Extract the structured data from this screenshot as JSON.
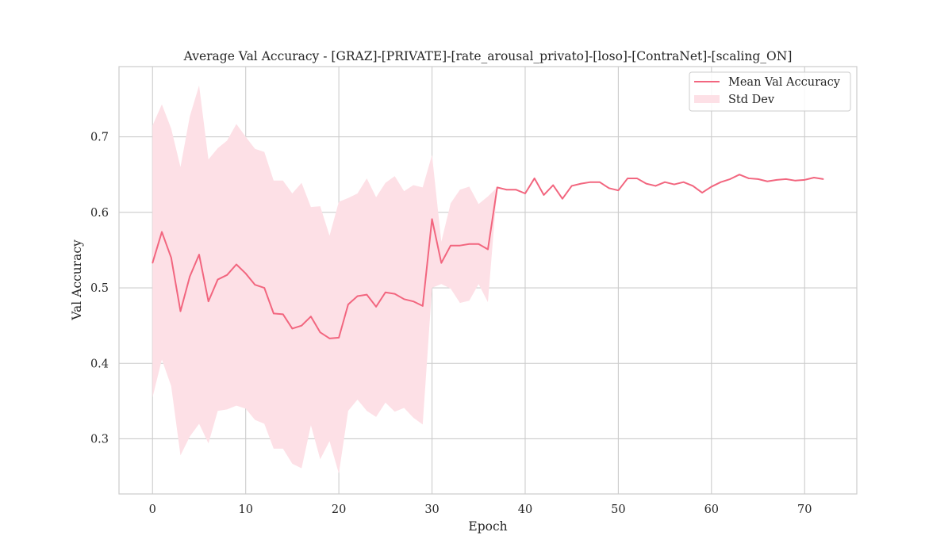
{
  "chart_data": {
    "type": "line",
    "title": "Average Val Accuracy - [GRAZ]-[PRIVATE]-[rate_arousal_privato]-[loso]-[ContraNet]-[scaling_ON]",
    "xlabel": "Epoch",
    "ylabel": "Val Accuracy",
    "xlim": [
      -3.6,
      75.6
    ],
    "ylim": [
      0.227,
      0.793
    ],
    "xticks": [
      0,
      10,
      20,
      30,
      40,
      50,
      60,
      70
    ],
    "yticks": [
      0.3,
      0.4,
      0.5,
      0.6,
      0.7
    ],
    "ytick_labels": [
      "0.3",
      "0.4",
      "0.5",
      "0.6",
      "0.7"
    ],
    "grid": true,
    "legend_position": "top-right",
    "colors": {
      "line": "#f2667f",
      "band": "#fde0e6",
      "grid": "#cccccc",
      "frame": "#cccccc"
    },
    "series": [
      {
        "name": "Mean Val Accuracy",
        "x": [
          0,
          1,
          2,
          3,
          4,
          5,
          6,
          7,
          8,
          9,
          10,
          11,
          12,
          13,
          14,
          15,
          16,
          17,
          18,
          19,
          20,
          21,
          22,
          23,
          24,
          25,
          26,
          27,
          28,
          29,
          30,
          31,
          32,
          33,
          34,
          35,
          36,
          37,
          38,
          39,
          40,
          41,
          42,
          43,
          44,
          45,
          46,
          47,
          48,
          49,
          50,
          51,
          52,
          53,
          54,
          55,
          56,
          57,
          58,
          59,
          60,
          61,
          62,
          63,
          64,
          65,
          66,
          67,
          68,
          69,
          70,
          71,
          72
        ],
        "y": [
          0.533,
          0.574,
          0.54,
          0.469,
          0.515,
          0.544,
          0.482,
          0.511,
          0.517,
          0.531,
          0.519,
          0.504,
          0.5,
          0.466,
          0.465,
          0.446,
          0.45,
          0.462,
          0.441,
          0.433,
          0.434,
          0.478,
          0.489,
          0.491,
          0.475,
          0.494,
          0.492,
          0.485,
          0.482,
          0.476,
          0.591,
          0.533,
          0.556,
          0.556,
          0.558,
          0.558,
          0.551,
          0.633,
          0.63,
          0.63,
          0.625,
          0.645,
          0.623,
          0.636,
          0.618,
          0.635,
          0.638,
          0.64,
          0.64,
          0.632,
          0.629,
          0.645,
          0.645,
          0.638,
          0.635,
          0.64,
          0.637,
          0.64,
          0.635,
          0.626,
          0.634,
          0.64,
          0.644,
          0.65,
          0.645,
          0.644,
          0.641,
          0.643,
          0.644,
          0.642,
          0.643,
          0.646,
          0.644
        ]
      },
      {
        "name": "Std Dev",
        "x": [
          0,
          1,
          2,
          3,
          4,
          5,
          6,
          7,
          8,
          9,
          10,
          11,
          12,
          13,
          14,
          15,
          16,
          17,
          18,
          19,
          20,
          21,
          22,
          23,
          24,
          25,
          26,
          27,
          28,
          29,
          30,
          31,
          32,
          33,
          34,
          35,
          36,
          37
        ],
        "upper": [
          0.715,
          0.743,
          0.711,
          0.66,
          0.727,
          0.768,
          0.67,
          0.685,
          0.695,
          0.717,
          0.7,
          0.684,
          0.68,
          0.642,
          0.642,
          0.625,
          0.639,
          0.607,
          0.608,
          0.569,
          0.614,
          0.619,
          0.625,
          0.645,
          0.62,
          0.639,
          0.648,
          0.628,
          0.636,
          0.633,
          0.676,
          0.561,
          0.612,
          0.63,
          0.634,
          0.611,
          0.621,
          0.633
        ],
        "lower": [
          0.355,
          0.405,
          0.37,
          0.278,
          0.303,
          0.32,
          0.294,
          0.337,
          0.339,
          0.344,
          0.34,
          0.325,
          0.32,
          0.287,
          0.287,
          0.267,
          0.261,
          0.318,
          0.273,
          0.297,
          0.254,
          0.337,
          0.352,
          0.337,
          0.329,
          0.348,
          0.336,
          0.341,
          0.328,
          0.319,
          0.5,
          0.505,
          0.499,
          0.48,
          0.483,
          0.505,
          0.481,
          0.633
        ]
      }
    ]
  }
}
